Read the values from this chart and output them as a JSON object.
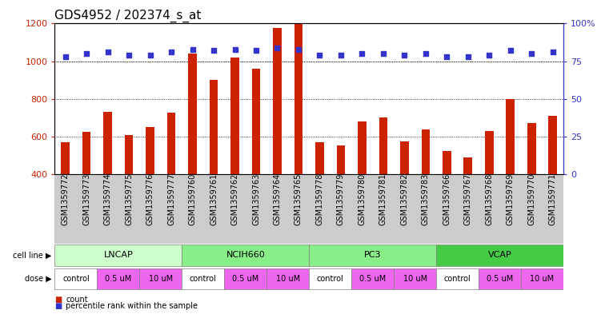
{
  "title": "GDS4952 / 202374_s_at",
  "samples": [
    "GSM1359772",
    "GSM1359773",
    "GSM1359774",
    "GSM1359775",
    "GSM1359776",
    "GSM1359777",
    "GSM1359760",
    "GSM1359761",
    "GSM1359762",
    "GSM1359763",
    "GSM1359764",
    "GSM1359765",
    "GSM1359778",
    "GSM1359779",
    "GSM1359780",
    "GSM1359781",
    "GSM1359782",
    "GSM1359783",
    "GSM1359766",
    "GSM1359767",
    "GSM1359768",
    "GSM1359769",
    "GSM1359770",
    "GSM1359771"
  ],
  "counts": [
    570,
    625,
    730,
    610,
    650,
    725,
    1040,
    900,
    1020,
    960,
    1175,
    1200,
    570,
    555,
    680,
    700,
    575,
    640,
    525,
    490,
    630,
    800,
    670,
    710
  ],
  "percentile_ranks": [
    78,
    80,
    81,
    79,
    79,
    81,
    83,
    82,
    83,
    82,
    84,
    83,
    79,
    79,
    80,
    80,
    79,
    80,
    78,
    78,
    79,
    82,
    80,
    81
  ],
  "bar_color": "#cc2200",
  "dot_color": "#3333cc",
  "ylim_left": [
    400,
    1200
  ],
  "ylim_right": [
    0,
    100
  ],
  "yticks_left": [
    400,
    600,
    800,
    1000,
    1200
  ],
  "yticks_right": [
    0,
    25,
    50,
    75,
    100
  ],
  "grid_dotted_values": [
    600,
    800,
    1000
  ],
  "grid_dotted_pct": 75,
  "cell_lines": [
    {
      "label": "LNCAP",
      "start": 0,
      "end": 6,
      "color": "#ccffcc"
    },
    {
      "label": "NCIH660",
      "start": 6,
      "end": 12,
      "color": "#88ee88"
    },
    {
      "label": "PC3",
      "start": 12,
      "end": 18,
      "color": "#88ee88"
    },
    {
      "label": "VCAP",
      "start": 18,
      "end": 24,
      "color": "#44cc44"
    }
  ],
  "dose_groups": [
    {
      "label": "control",
      "start": 0,
      "end": 2,
      "color": "#ffffff"
    },
    {
      "label": "0.5 uM",
      "start": 2,
      "end": 4,
      "color": "#ee66ee"
    },
    {
      "label": "10 uM",
      "start": 4,
      "end": 6,
      "color": "#ee66ee"
    },
    {
      "label": "control",
      "start": 6,
      "end": 8,
      "color": "#ffffff"
    },
    {
      "label": "0.5 uM",
      "start": 8,
      "end": 10,
      "color": "#ee66ee"
    },
    {
      "label": "10 uM",
      "start": 10,
      "end": 12,
      "color": "#ee66ee"
    },
    {
      "label": "control",
      "start": 12,
      "end": 14,
      "color": "#ffffff"
    },
    {
      "label": "0.5 uM",
      "start": 14,
      "end": 16,
      "color": "#ee66ee"
    },
    {
      "label": "10 uM",
      "start": 16,
      "end": 18,
      "color": "#ee66ee"
    },
    {
      "label": "control",
      "start": 18,
      "end": 20,
      "color": "#ffffff"
    },
    {
      "label": "0.5 uM",
      "start": 20,
      "end": 22,
      "color": "#ee66ee"
    },
    {
      "label": "10 uM",
      "start": 22,
      "end": 24,
      "color": "#ee66ee"
    }
  ],
  "cell_line_label": "cell line",
  "dose_label": "dose",
  "legend_items": [
    {
      "symbol": "s",
      "color": "#cc2200",
      "label": "count"
    },
    {
      "symbol": "s",
      "color": "#3333cc",
      "label": "percentile rank within the sample"
    }
  ],
  "bar_color_legend": "#cc2200",
  "dot_color_legend": "#3333cc",
  "background_color": "#ffffff",
  "plot_bg_color": "#ffffff",
  "sample_label_bg": "#cccccc",
  "title_fontsize": 11,
  "tick_fontsize": 7,
  "bar_width": 0.4,
  "n_samples": 24
}
